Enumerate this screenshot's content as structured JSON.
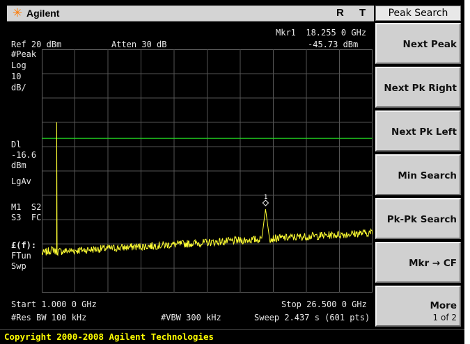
{
  "titlebar": {
    "brand_icon": "agilent-spark-icon",
    "brand": "Agilent",
    "indicator_r": "R",
    "indicator_t": "T"
  },
  "header": {
    "ref": "Ref 20 dBm",
    "atten": "Atten 30 dB",
    "marker_label": "Mkr1  18.255 0 GHz",
    "marker_value": "-45.73 dBm"
  },
  "left_annotations": {
    "peak": "#Peak",
    "log": "Log",
    "scale": "10",
    "scale_unit": "dB/",
    "dl": "Dl",
    "dl_value": "-16.6",
    "dl_unit": "dBm",
    "lgav": "LgAv",
    "m1s2": "M1  S2",
    "s3fc": "S3  FC",
    "ef": "£(f):",
    "ftun": "FTun",
    "swp": "Swp"
  },
  "footer": {
    "start": "Start 1.000 0 GHz",
    "stop": "Stop 26.500 0 GHz",
    "res_bw": "#Res BW 100 kHz",
    "vbw": "#VBW 300 kHz",
    "sweep": "Sweep 2.437 s (601 pts)"
  },
  "marker": {
    "number": "1",
    "freq_ghz": 18.255,
    "level_dbm": -45.73
  },
  "display_line_dbm": -16.6,
  "softkeys": {
    "menu_title": "Peak Search",
    "items": [
      {
        "label": "Next Peak"
      },
      {
        "label": "Next Pk Right"
      },
      {
        "label": "Next Pk Left"
      },
      {
        "label": "Min Search"
      },
      {
        "label": "Pk-Pk Search"
      },
      {
        "label": "Mkr → CF"
      },
      {
        "label": "More",
        "sub": "1 of 2"
      }
    ]
  },
  "status": {
    "copyright": "Copyright 2000-2008 Agilent Technologies"
  },
  "colors": {
    "trace": "#ffff33",
    "display_line": "#22dd22",
    "grid": "#555555",
    "background": "#000000"
  }
}
